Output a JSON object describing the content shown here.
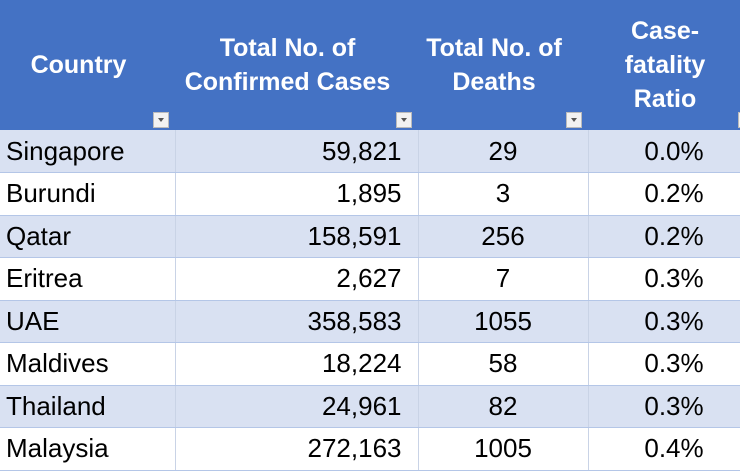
{
  "headers": [
    {
      "line1": "Country",
      "line2": ""
    },
    {
      "line1": "Total No. of",
      "line2": "Confirmed Cases"
    },
    {
      "line1": "Total No. of",
      "line2": "Deaths"
    },
    {
      "line1": "Case-",
      "line2": "fatality",
      "line3": "Ratio"
    }
  ],
  "rows": [
    [
      "Singapore",
      "59,821",
      "29",
      "0.0%"
    ],
    [
      "Burundi",
      "1,895",
      "3",
      "0.2%"
    ],
    [
      "Qatar",
      "158,591",
      "256",
      "0.2%"
    ],
    [
      "Eritrea",
      "2,627",
      "7",
      "0.3%"
    ],
    [
      "UAE",
      "358,583",
      "1055",
      "0.3%"
    ],
    [
      "Maldives",
      "18,224",
      "58",
      "0.3%"
    ],
    [
      "Thailand",
      "24,961",
      "82",
      "0.3%"
    ],
    [
      "Malaysia",
      "272,163",
      "1005",
      "0.4%"
    ]
  ],
  "colors": {
    "header": "#4472C4",
    "band": "#D9E1F2"
  }
}
